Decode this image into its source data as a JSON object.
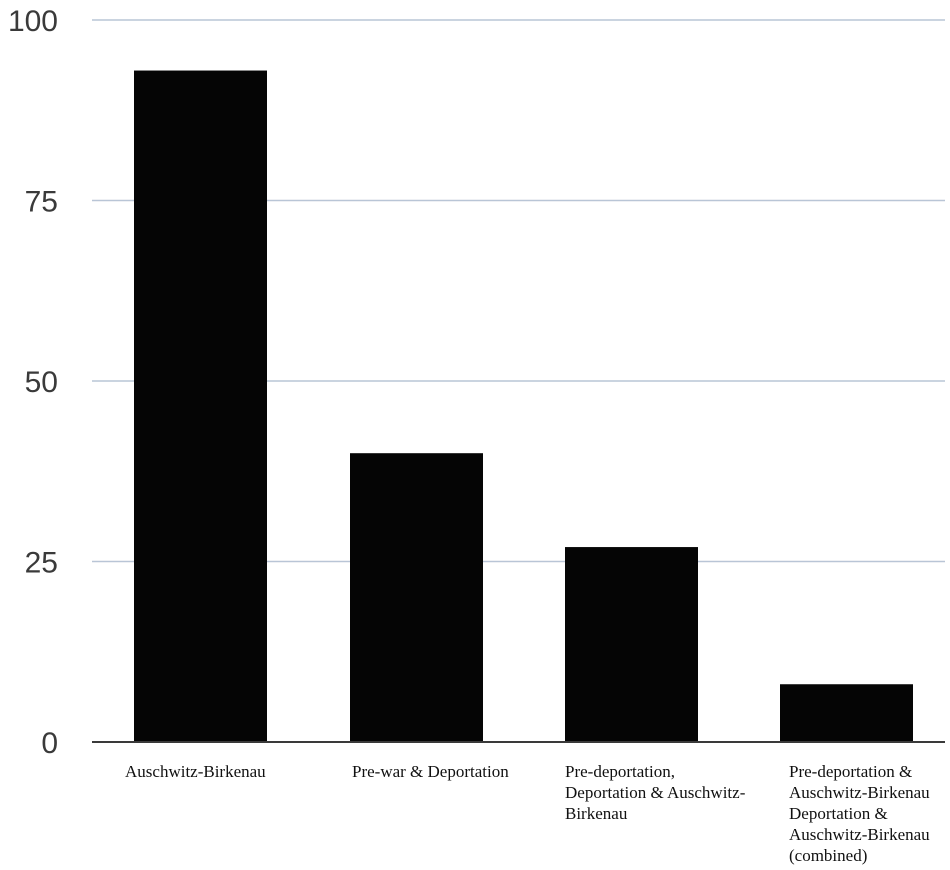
{
  "chart_data": {
    "type": "bar",
    "categories": [
      [
        "Auschwitz-Birkenau"
      ],
      [
        "Pre-war & Deportation"
      ],
      [
        "Pre-deportation,",
        "Deportation & Auschwitz-",
        "Birkenau"
      ],
      [
        "Pre-deportation &",
        "Auschwitz-Birkenau",
        "Deportation &",
        "Auschwitz-Birkenau",
        "(combined)"
      ]
    ],
    "values": [
      93,
      40,
      27,
      8
    ],
    "ylim": [
      0,
      100
    ],
    "yticks": [
      0,
      25,
      50,
      75,
      100
    ],
    "grid": true,
    "bar_color": "#050505",
    "grid_color": "#b9c5d6"
  }
}
